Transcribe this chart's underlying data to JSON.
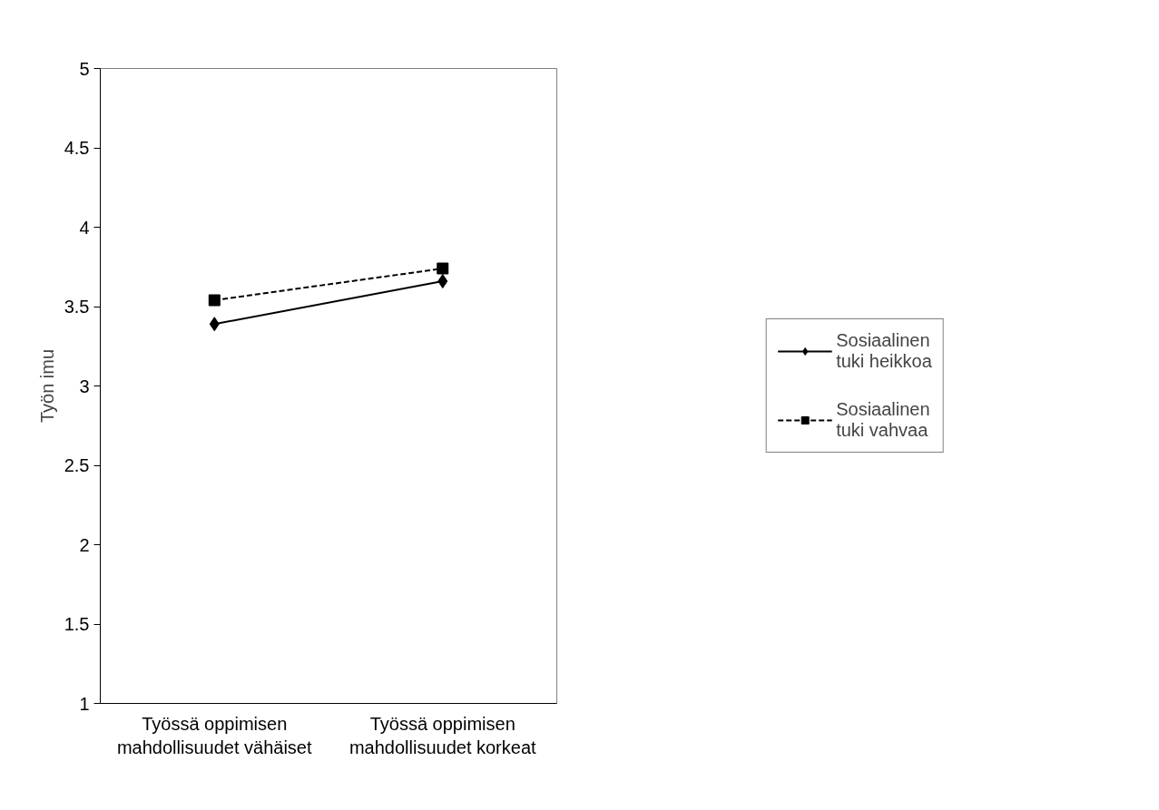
{
  "chart_data": {
    "type": "line",
    "ylabel": "Työn imu",
    "categories": [
      "Työssä oppimisen mahdollisuudet vähäiset",
      "Työssä oppimisen mahdollisuudet korkeat"
    ],
    "series": [
      {
        "name": "Sosiaalinen tuki heikkoa",
        "color": "#000000",
        "values": [
          3.39,
          3.66
        ],
        "marker": "diamond",
        "line_style": "solid"
      },
      {
        "name": "Sosiaalinen tuki vahvaa",
        "color": "#000000",
        "values": [
          3.54,
          3.74
        ],
        "marker": "square",
        "line_style": "dashed"
      }
    ],
    "ylim": [
      1,
      5
    ],
    "yticks": [
      1,
      1.5,
      2,
      2.5,
      3,
      3.5,
      4,
      4.5,
      5
    ],
    "grid": false,
    "legend": "right"
  }
}
